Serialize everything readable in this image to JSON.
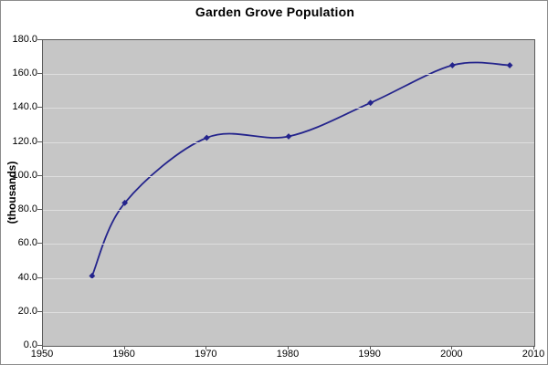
{
  "chart_data": {
    "type": "line",
    "title": "Garden Grove Population",
    "ylabel": "(thousands)",
    "xlabel": "",
    "x": [
      1956,
      1960,
      1970,
      1980,
      1990,
      2000,
      2007
    ],
    "values": [
      41.2,
      84.2,
      122.5,
      123.3,
      143.1,
      165.2,
      165.2
    ],
    "xlim": [
      1950,
      2010
    ],
    "ylim": [
      0,
      180
    ],
    "x_ticks": [
      1950,
      1960,
      1970,
      1980,
      1990,
      2000,
      2010
    ],
    "x_tick_labels": [
      "1950",
      "1960",
      "1970",
      "1980",
      "1990",
      "2000",
      "2010"
    ],
    "y_tick_labels": [
      "180.0",
      "160.0",
      "140.0",
      "120.0",
      "100.0",
      "80.0",
      "60.0",
      "40.0",
      "20.0",
      "0.0"
    ],
    "grid": true,
    "legend": "none",
    "line_smooth": true,
    "marker": "diamond",
    "colors": {
      "line": "#24248c",
      "marker": "#24248c",
      "plot_background": "#c6c6c6",
      "gridline": "#dedede",
      "axis": "#595959",
      "text": "#000000",
      "page_background": "#ffffff"
    }
  }
}
